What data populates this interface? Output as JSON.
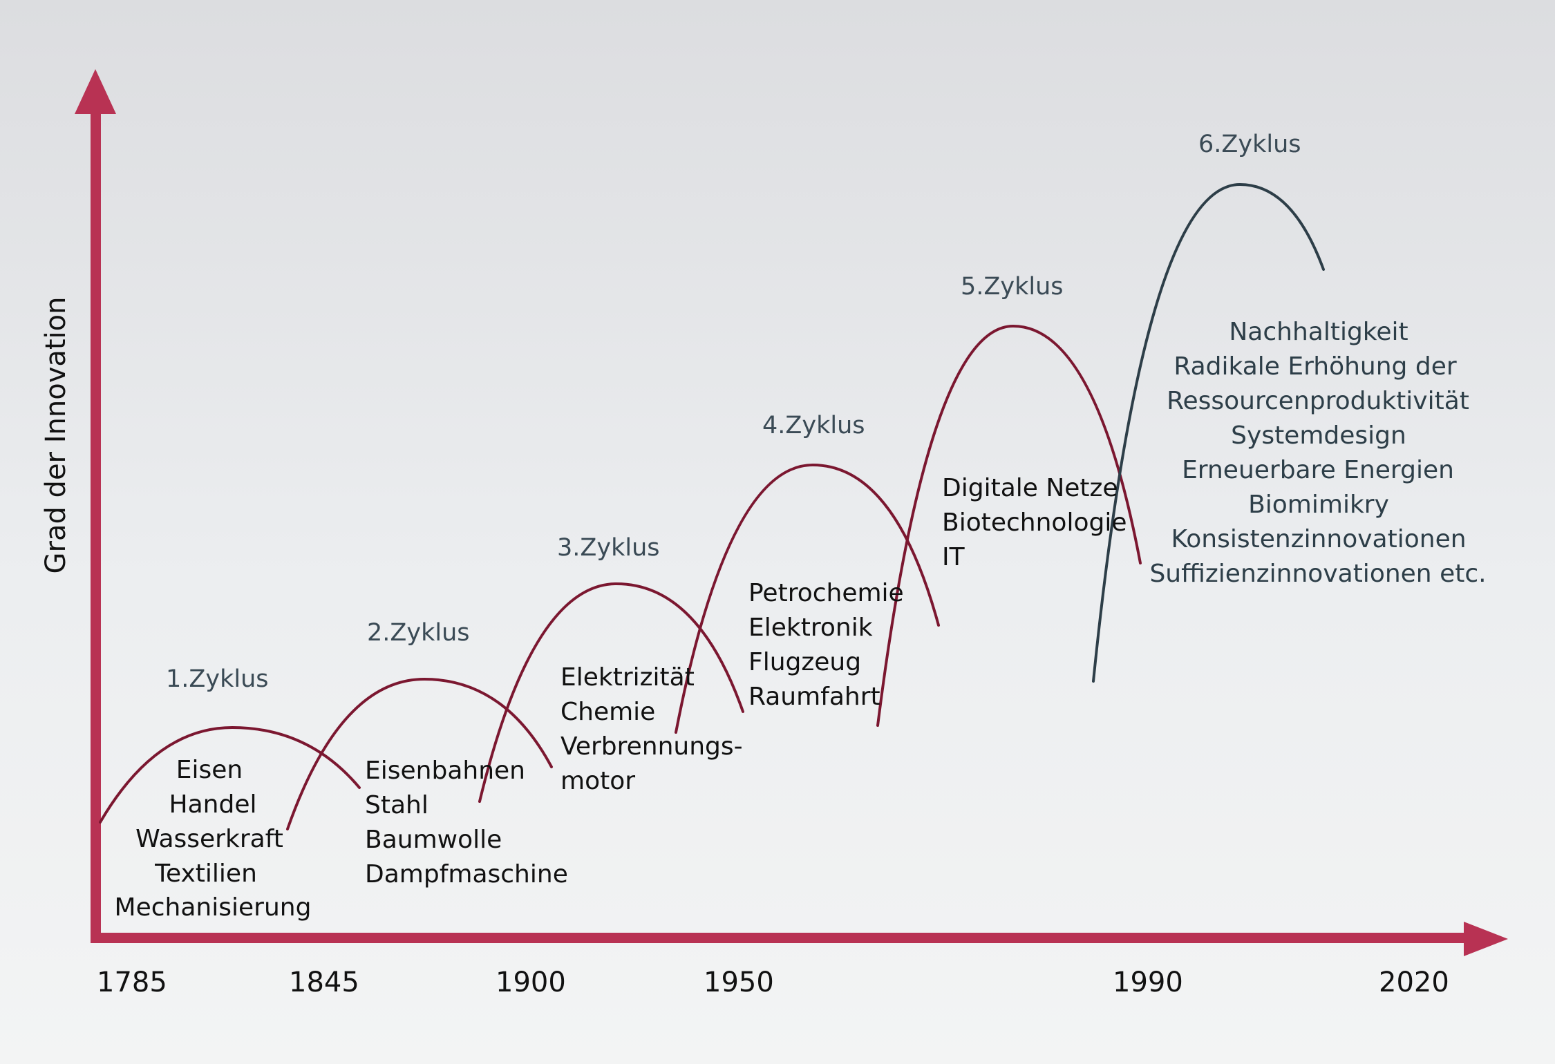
{
  "y_axis_label": "Grad der Innovation",
  "x_axis": {
    "ticks": [
      {
        "label": "1785",
        "value": 1785
      },
      {
        "label": "1845",
        "value": 1845
      },
      {
        "label": "1900",
        "value": 1900
      },
      {
        "label": "1950",
        "value": 1950
      },
      {
        "label": "1990",
        "value": 1990
      },
      {
        "label": "2020",
        "value": 2020
      }
    ]
  },
  "colors": {
    "axis": "#b83253",
    "cycle": "#7b1730",
    "cycle_last": "#2d3e48",
    "label_text": "#3a4a55",
    "item_text": "#111111",
    "item_text_last": "#2d3e48"
  },
  "cycles": [
    {
      "label": "1.Zyklus",
      "items": [
        "Eisen",
        "Handel",
        "Wasserkraft",
        "Textilien",
        "Mechanisierung"
      ]
    },
    {
      "label": "2.Zyklus",
      "items": [
        "Eisenbahnen",
        "Stahl",
        "Baumwolle",
        "Dampfmaschine"
      ]
    },
    {
      "label": "3.Zyklus",
      "items": [
        "Elektrizität",
        "Chemie",
        "Verbrennungs-",
        "motor"
      ]
    },
    {
      "label": "4.Zyklus",
      "items": [
        "Petrochemie",
        "Elektronik",
        "Flugzeug",
        "Raumfahrt"
      ]
    },
    {
      "label": "5.Zyklus",
      "items": [
        "Digitale Netze",
        "Biotechnologie",
        "IT"
      ]
    },
    {
      "label": "6.Zyklus",
      "items": [
        "Nachhaltigkeit",
        "Radikale Erhöhung der",
        "Ressourcenproduktivität",
        "Systemdesign",
        "Erneuerbare Energien",
        "Biomimikry",
        "Konsistenzinnovationen",
        "Suffizienzinnovationen etc."
      ]
    }
  ]
}
